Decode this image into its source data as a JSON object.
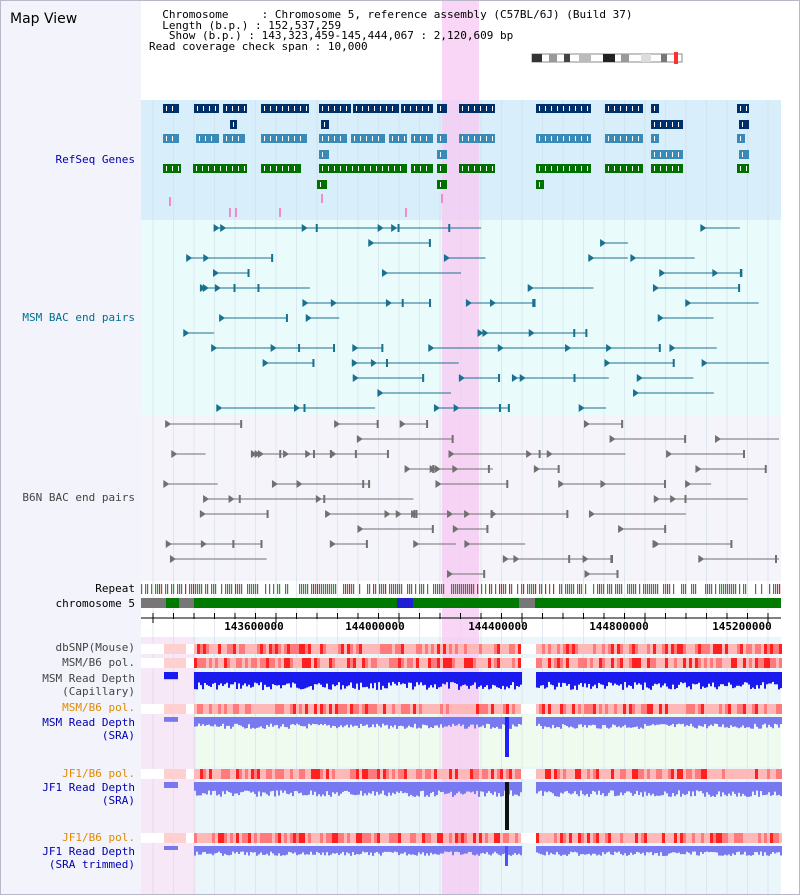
{
  "title": "Map View",
  "header": {
    "chromosome_label": "Chromosome",
    "chromosome_value": "Chromosome 5, reference assembly (C57BL/6J) (Build 37)",
    "length_label": "Length (b.p.)",
    "length_value": "152,537,259",
    "show_label": "Show (b.p.)",
    "show_value": "143,323,459-145,444,067 : 2,120,609 bp",
    "coverage_label": "Read coverage check span",
    "coverage_value": "10,000"
  },
  "tracks": {
    "refseq": "RefSeq Genes",
    "msm_bac": "MSM BAC end pairs",
    "b6n_bac": "B6N BAC end pairs",
    "repeat": "Repeat",
    "chromosome": "chromosome 5",
    "dbsnp": "dbSNP(Mouse)",
    "msm_b6_pol_1": "MSM/B6 pol.",
    "msm_depth_cap_1": "MSM Read Depth",
    "msm_depth_cap_2": "(Capillary)",
    "msm_b6_pol_2": "MSM/B6 pol.",
    "msm_depth_sra_1": "MSM Read Depth",
    "msm_depth_sra_2": "(SRA)",
    "jf1_b6_pol_1": "JF1/B6 pol.",
    "jf1_depth_sra_1": "JF1 Read Depth",
    "jf1_depth_sra_2": "(SRA)",
    "jf1_b6_pol_2": "JF1/B6 pol.",
    "jf1_depth_trim_1": "JF1 Read Depth",
    "jf1_depth_trim_2": "(SRA trimmed)"
  },
  "ruler": {
    "ticks": [
      "143600000",
      "144000000",
      "144400000",
      "144800000",
      "145200000"
    ]
  },
  "colors": {
    "refseq_bg": "#d8eefa",
    "msm_bg": "#e9fbfb",
    "b6n_bg": "#f4f4fa",
    "highlight": "#f7c8f2",
    "gene_dark": "#00306a",
    "gene_mid": "#3a8ab8",
    "gene_green": "#007000",
    "msm_pair": "#1a7090",
    "b6n_pair": "#707070",
    "chromosome_band": "#007a00",
    "snp_red": "#ff5050",
    "depth_blue": "#1a1aee",
    "sra_blue": "#7878f0",
    "label_orange": "#e08a00"
  }
}
